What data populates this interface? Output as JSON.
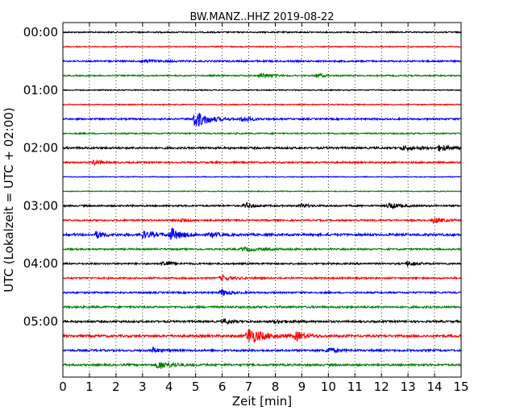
{
  "chart_data": {
    "type": "line",
    "title": "BW.MANZ..HHZ 2019-08-22",
    "xlabel": "Zeit  [min]",
    "ylabel": "UTC (Lokalzeit = UTC + 02:00)",
    "xlim": [
      0,
      15
    ],
    "x_ticks": [
      "0",
      "1",
      "2",
      "3",
      "4",
      "5",
      "6",
      "7",
      "8",
      "9",
      "10",
      "11",
      "12",
      "13",
      "14",
      "15"
    ],
    "y_ticks": [
      "00:00",
      "01:00",
      "02:00",
      "03:00",
      "04:00",
      "05:00"
    ],
    "grid": "vertical-dotted",
    "trace_colors": [
      "#000000",
      "#ff0000",
      "#0000ff",
      "#008000"
    ],
    "traces": [
      {
        "time": "00:00",
        "color": "#000000",
        "noise": 0.8,
        "events": []
      },
      {
        "time": "00:15",
        "color": "#ff0000",
        "noise": 0.6,
        "events": []
      },
      {
        "time": "00:30",
        "color": "#0000ff",
        "noise": 1.0,
        "events": [
          {
            "t": 3.0,
            "a": 2.0,
            "d": 1.0
          }
        ]
      },
      {
        "time": "00:45",
        "color": "#008000",
        "noise": 0.8,
        "events": [
          {
            "t": 7.5,
            "a": 3.0,
            "d": 0.8
          },
          {
            "t": 9.6,
            "a": 2.5,
            "d": 0.5
          }
        ]
      },
      {
        "time": "01:00",
        "color": "#000000",
        "noise": 0.6,
        "events": []
      },
      {
        "time": "01:15",
        "color": "#ff0000",
        "noise": 0.6,
        "events": []
      },
      {
        "time": "01:30",
        "color": "#0000ff",
        "noise": 1.0,
        "events": [
          {
            "t": 5.0,
            "a": 11.0,
            "d": 1.0
          },
          {
            "t": 6.8,
            "a": 3.5,
            "d": 0.6
          }
        ]
      },
      {
        "time": "01:45",
        "color": "#008000",
        "noise": 0.8,
        "events": []
      },
      {
        "time": "02:00",
        "color": "#000000",
        "noise": 1.2,
        "events": [
          {
            "t": 12.8,
            "a": 2.0,
            "d": 1.2
          },
          {
            "t": 14.2,
            "a": 3.5,
            "d": 0.8
          }
        ]
      },
      {
        "time": "02:15",
        "color": "#ff0000",
        "noise": 1.0,
        "events": [
          {
            "t": 1.2,
            "a": 3.0,
            "d": 0.5
          }
        ]
      },
      {
        "time": "02:30",
        "color": "#0000ff",
        "noise": 0.5,
        "events": []
      },
      {
        "time": "02:45",
        "color": "#008000",
        "noise": 0.5,
        "events": []
      },
      {
        "time": "03:00",
        "color": "#000000",
        "noise": 1.0,
        "events": [
          {
            "t": 6.9,
            "a": 3.5,
            "d": 0.6
          },
          {
            "t": 9.0,
            "a": 2.0,
            "d": 0.6
          },
          {
            "t": 12.3,
            "a": 3.5,
            "d": 0.8
          }
        ]
      },
      {
        "time": "03:15",
        "color": "#ff0000",
        "noise": 1.0,
        "events": [
          {
            "t": 4.5,
            "a": 2.0,
            "d": 0.8
          },
          {
            "t": 14.0,
            "a": 3.5,
            "d": 0.7
          }
        ]
      },
      {
        "time": "03:30",
        "color": "#0000ff",
        "noise": 1.4,
        "events": [
          {
            "t": 1.3,
            "a": 4.0,
            "d": 0.6
          },
          {
            "t": 3.0,
            "a": 4.0,
            "d": 1.0
          },
          {
            "t": 4.1,
            "a": 7.0,
            "d": 0.8
          },
          {
            "t": 5.6,
            "a": 3.0,
            "d": 0.6
          }
        ]
      },
      {
        "time": "03:45",
        "color": "#008000",
        "noise": 1.0,
        "events": [
          {
            "t": 6.8,
            "a": 2.0,
            "d": 1.5
          }
        ]
      },
      {
        "time": "04:00",
        "color": "#000000",
        "noise": 1.0,
        "events": [
          {
            "t": 3.8,
            "a": 3.5,
            "d": 0.6
          },
          {
            "t": 13.0,
            "a": 2.5,
            "d": 0.6
          }
        ]
      },
      {
        "time": "04:15",
        "color": "#ff0000",
        "noise": 1.0,
        "events": [
          {
            "t": 6.0,
            "a": 3.0,
            "d": 0.8
          }
        ]
      },
      {
        "time": "04:30",
        "color": "#0000ff",
        "noise": 1.0,
        "events": [
          {
            "t": 6.0,
            "a": 4.0,
            "d": 0.6
          }
        ]
      },
      {
        "time": "04:45",
        "color": "#008000",
        "noise": 1.2,
        "events": []
      },
      {
        "time": "05:00",
        "color": "#000000",
        "noise": 1.2,
        "events": [
          {
            "t": 6.1,
            "a": 3.0,
            "d": 0.5
          },
          {
            "t": 8.0,
            "a": 2.0,
            "d": 1.0
          }
        ]
      },
      {
        "time": "05:15",
        "color": "#ff0000",
        "noise": 1.4,
        "events": [
          {
            "t": 7.0,
            "a": 10.0,
            "d": 1.2
          },
          {
            "t": 8.8,
            "a": 5.0,
            "d": 0.7
          }
        ]
      },
      {
        "time": "05:30",
        "color": "#0000ff",
        "noise": 1.2,
        "events": [
          {
            "t": 3.4,
            "a": 3.5,
            "d": 0.5
          },
          {
            "t": 10.0,
            "a": 3.0,
            "d": 0.7
          }
        ]
      },
      {
        "time": "05:45",
        "color": "#008000",
        "noise": 1.2,
        "events": [
          {
            "t": 3.6,
            "a": 5.0,
            "d": 1.0
          }
        ]
      }
    ]
  }
}
